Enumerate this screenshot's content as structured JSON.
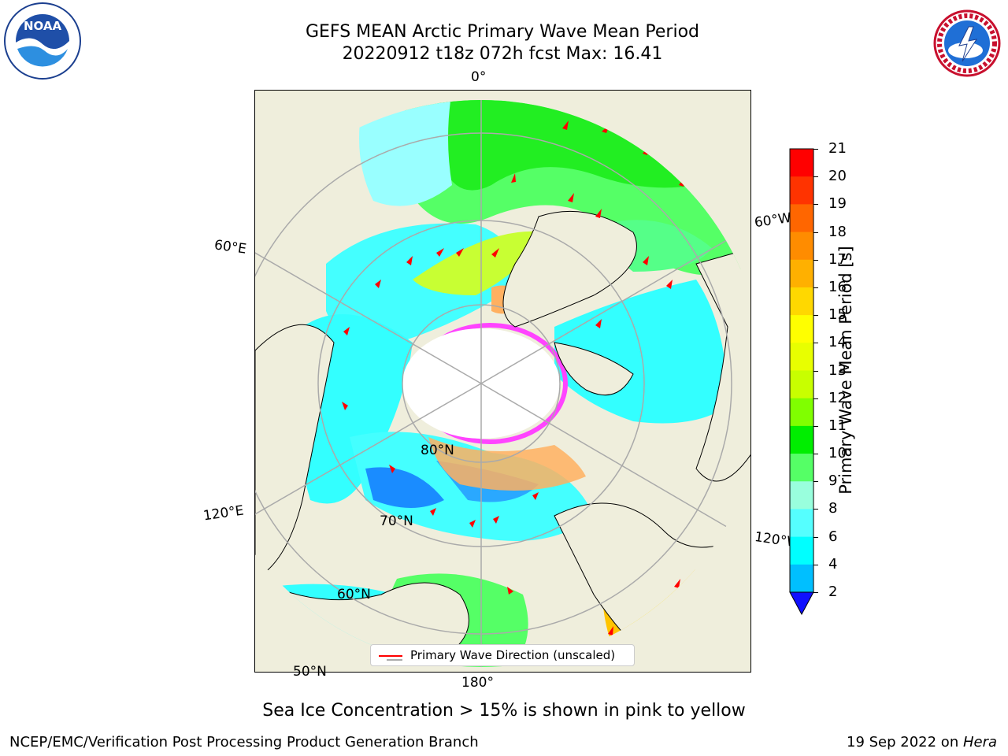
{
  "header": {
    "title_line1": "GEFS MEAN Arctic Primary Wave Mean Period",
    "title_line2": "20220912 t18z 072h fcst   Max: 16.41"
  },
  "logos": {
    "left": {
      "text": "NOAA",
      "ring_text": "NATIONAL OCEANIC AND ATMOSPHERIC ADMINISTRATION · U.S. DEPARTMENT OF COMMERCE"
    },
    "right": {
      "ring_text": "NATIONAL WEATHER SERVICE"
    }
  },
  "map": {
    "labels": {
      "lon_0": "0°",
      "lon_60e": "60°E",
      "lon_60w": "60°W",
      "lon_120e": "120°E",
      "lon_120w": "120°W",
      "lon_180": "180°",
      "lat_80": "80°N",
      "lat_70": "70°N",
      "lat_60": "60°N",
      "lat_50": "50°N"
    },
    "legend": {
      "label": "Primary Wave Direction (unscaled)"
    },
    "colors": {
      "land": "#efeedc",
      "ice_pink": "#ff44ff",
      "ice_orange": "#ffb060",
      "arrow": "#ff0000"
    }
  },
  "colorbar": {
    "label": "Primary Wave Mean Period [s]",
    "ticks": [
      "21",
      "20",
      "19",
      "18",
      "17",
      "16",
      "15",
      "14",
      "13",
      "12",
      "11",
      "10",
      "9",
      "8",
      "6",
      "4",
      "2"
    ],
    "colors": [
      "#ff0000",
      "#ff3300",
      "#ff6600",
      "#ff8c00",
      "#ffb000",
      "#ffd800",
      "#ffff00",
      "#e8ff00",
      "#c8ff00",
      "#80ff00",
      "#00ee00",
      "#55ff66",
      "#99ffdd",
      "#55ffff",
      "#00ffff",
      "#00bfff",
      "#0070ff"
    ],
    "extend_color": "#1010ff"
  },
  "caption": "Sea Ice Concentration > 15% is shown in pink to yellow",
  "footer": {
    "left": "NCEP/EMC/Verification Post Processing Product Generation Branch",
    "right_date": "19 Sep 2022 on ",
    "right_host": "Hera"
  }
}
